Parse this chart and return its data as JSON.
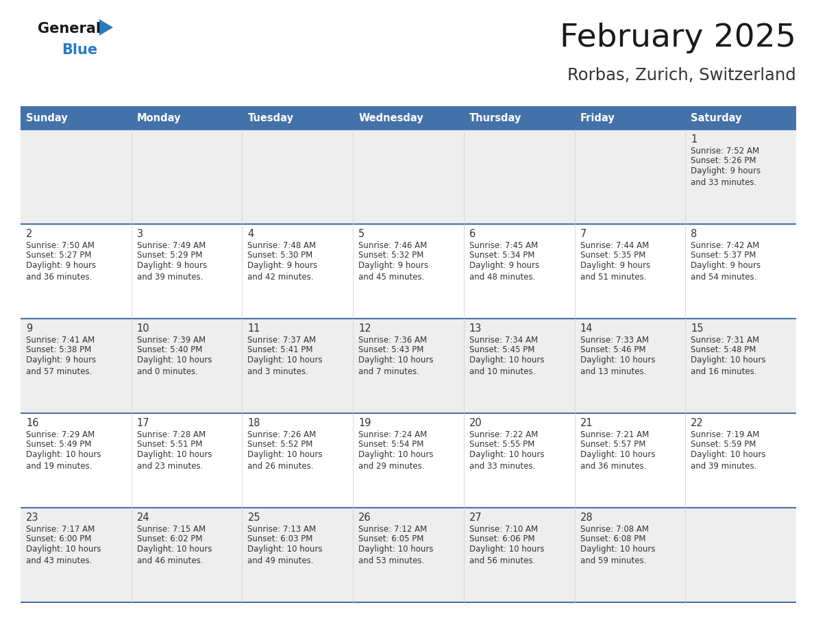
{
  "title": "February 2025",
  "subtitle": "Rorbas, Zurich, Switzerland",
  "days_of_week": [
    "Sunday",
    "Monday",
    "Tuesday",
    "Wednesday",
    "Thursday",
    "Friday",
    "Saturday"
  ],
  "header_bg": "#4472A8",
  "header_text": "#FFFFFF",
  "row_bg": [
    "#EEEEEE",
    "#FFFFFF",
    "#EEEEEE",
    "#FFFFFF",
    "#EEEEEE"
  ],
  "divider_color": "#4472A8",
  "text_color": "#333333",
  "calendar_data": [
    [
      null,
      null,
      null,
      null,
      null,
      null,
      {
        "day": 1,
        "sunrise": "7:52 AM",
        "sunset": "5:26 PM",
        "daylight": "9 hours\nand 33 minutes."
      }
    ],
    [
      {
        "day": 2,
        "sunrise": "7:50 AM",
        "sunset": "5:27 PM",
        "daylight": "9 hours\nand 36 minutes."
      },
      {
        "day": 3,
        "sunrise": "7:49 AM",
        "sunset": "5:29 PM",
        "daylight": "9 hours\nand 39 minutes."
      },
      {
        "day": 4,
        "sunrise": "7:48 AM",
        "sunset": "5:30 PM",
        "daylight": "9 hours\nand 42 minutes."
      },
      {
        "day": 5,
        "sunrise": "7:46 AM",
        "sunset": "5:32 PM",
        "daylight": "9 hours\nand 45 minutes."
      },
      {
        "day": 6,
        "sunrise": "7:45 AM",
        "sunset": "5:34 PM",
        "daylight": "9 hours\nand 48 minutes."
      },
      {
        "day": 7,
        "sunrise": "7:44 AM",
        "sunset": "5:35 PM",
        "daylight": "9 hours\nand 51 minutes."
      },
      {
        "day": 8,
        "sunrise": "7:42 AM",
        "sunset": "5:37 PM",
        "daylight": "9 hours\nand 54 minutes."
      }
    ],
    [
      {
        "day": 9,
        "sunrise": "7:41 AM",
        "sunset": "5:38 PM",
        "daylight": "9 hours\nand 57 minutes."
      },
      {
        "day": 10,
        "sunrise": "7:39 AM",
        "sunset": "5:40 PM",
        "daylight": "10 hours\nand 0 minutes."
      },
      {
        "day": 11,
        "sunrise": "7:37 AM",
        "sunset": "5:41 PM",
        "daylight": "10 hours\nand 3 minutes."
      },
      {
        "day": 12,
        "sunrise": "7:36 AM",
        "sunset": "5:43 PM",
        "daylight": "10 hours\nand 7 minutes."
      },
      {
        "day": 13,
        "sunrise": "7:34 AM",
        "sunset": "5:45 PM",
        "daylight": "10 hours\nand 10 minutes."
      },
      {
        "day": 14,
        "sunrise": "7:33 AM",
        "sunset": "5:46 PM",
        "daylight": "10 hours\nand 13 minutes."
      },
      {
        "day": 15,
        "sunrise": "7:31 AM",
        "sunset": "5:48 PM",
        "daylight": "10 hours\nand 16 minutes."
      }
    ],
    [
      {
        "day": 16,
        "sunrise": "7:29 AM",
        "sunset": "5:49 PM",
        "daylight": "10 hours\nand 19 minutes."
      },
      {
        "day": 17,
        "sunrise": "7:28 AM",
        "sunset": "5:51 PM",
        "daylight": "10 hours\nand 23 minutes."
      },
      {
        "day": 18,
        "sunrise": "7:26 AM",
        "sunset": "5:52 PM",
        "daylight": "10 hours\nand 26 minutes."
      },
      {
        "day": 19,
        "sunrise": "7:24 AM",
        "sunset": "5:54 PM",
        "daylight": "10 hours\nand 29 minutes."
      },
      {
        "day": 20,
        "sunrise": "7:22 AM",
        "sunset": "5:55 PM",
        "daylight": "10 hours\nand 33 minutes."
      },
      {
        "day": 21,
        "sunrise": "7:21 AM",
        "sunset": "5:57 PM",
        "daylight": "10 hours\nand 36 minutes."
      },
      {
        "day": 22,
        "sunrise": "7:19 AM",
        "sunset": "5:59 PM",
        "daylight": "10 hours\nand 39 minutes."
      }
    ],
    [
      {
        "day": 23,
        "sunrise": "7:17 AM",
        "sunset": "6:00 PM",
        "daylight": "10 hours\nand 43 minutes."
      },
      {
        "day": 24,
        "sunrise": "7:15 AM",
        "sunset": "6:02 PM",
        "daylight": "10 hours\nand 46 minutes."
      },
      {
        "day": 25,
        "sunrise": "7:13 AM",
        "sunset": "6:03 PM",
        "daylight": "10 hours\nand 49 minutes."
      },
      {
        "day": 26,
        "sunrise": "7:12 AM",
        "sunset": "6:05 PM",
        "daylight": "10 hours\nand 53 minutes."
      },
      {
        "day": 27,
        "sunrise": "7:10 AM",
        "sunset": "6:06 PM",
        "daylight": "10 hours\nand 56 minutes."
      },
      {
        "day": 28,
        "sunrise": "7:08 AM",
        "sunset": "6:08 PM",
        "daylight": "10 hours\nand 59 minutes."
      },
      null
    ]
  ],
  "logo_color_general": "#1a1a1a",
  "logo_color_blue": "#2a7bbf"
}
